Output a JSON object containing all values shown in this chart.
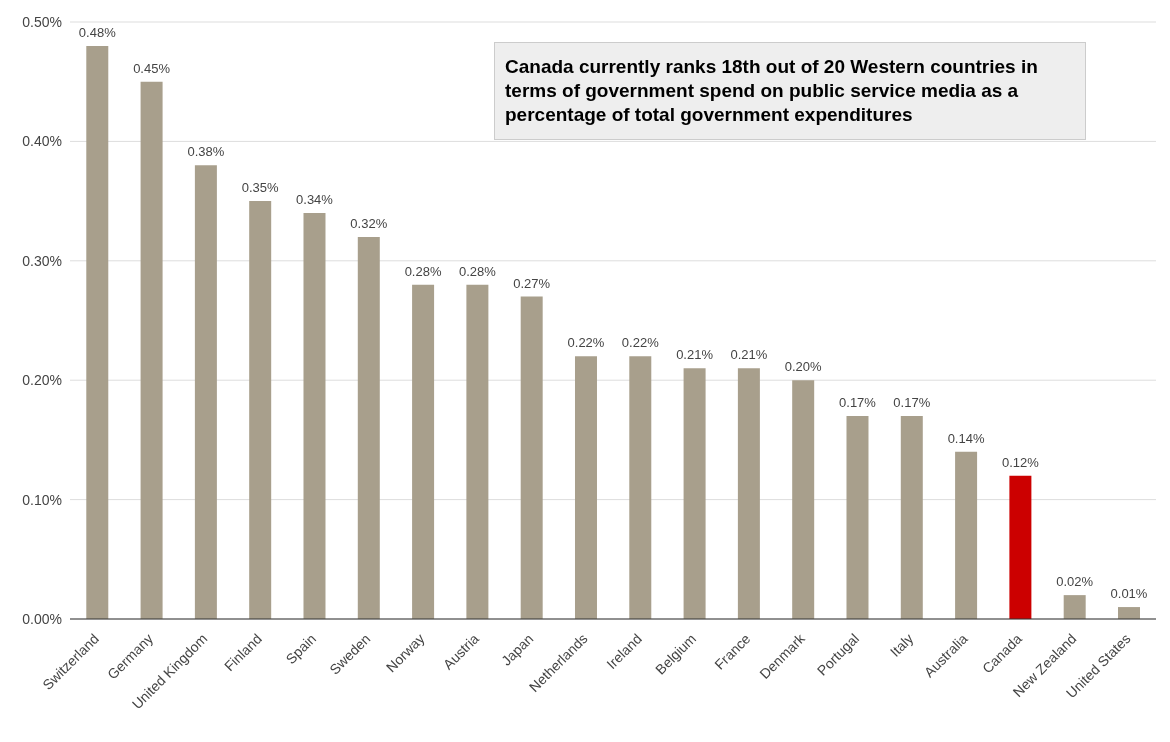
{
  "chart_data": {
    "type": "bar",
    "categories": [
      "Switzerland",
      "Germany",
      "United Kingdom",
      "Finland",
      "Spain",
      "Sweden",
      "Norway",
      "Austria",
      "Japan",
      "Netherlands",
      "Ireland",
      "Belgium",
      "France",
      "Denmark",
      "Portugal",
      "Italy",
      "Australia",
      "Canada",
      "New Zealand",
      "United States"
    ],
    "values": [
      0.48,
      0.45,
      0.38,
      0.35,
      0.34,
      0.32,
      0.28,
      0.28,
      0.27,
      0.22,
      0.22,
      0.21,
      0.21,
      0.2,
      0.17,
      0.17,
      0.14,
      0.12,
      0.02,
      0.01
    ],
    "colors": [
      "#a89f8c",
      "#a89f8c",
      "#a89f8c",
      "#a89f8c",
      "#a89f8c",
      "#a89f8c",
      "#a89f8c",
      "#a89f8c",
      "#a89f8c",
      "#a89f8c",
      "#a89f8c",
      "#a89f8c",
      "#a89f8c",
      "#a89f8c",
      "#a89f8c",
      "#a89f8c",
      "#a89f8c",
      "#cc0000",
      "#a89f8c",
      "#a89f8c"
    ],
    "value_labels": [
      "0.48%",
      "0.45%",
      "0.38%",
      "0.35%",
      "0.34%",
      "0.32%",
      "0.28%",
      "0.28%",
      "0.27%",
      "0.22%",
      "0.22%",
      "0.21%",
      "0.21%",
      "0.20%",
      "0.17%",
      "0.17%",
      "0.14%",
      "0.12%",
      "0.02%",
      "0.01%"
    ],
    "ylim": [
      0,
      0.5
    ],
    "yticks": [
      {
        "value": 0,
        "label": "0.00%"
      },
      {
        "value": 0.1,
        "label": "0.10%"
      },
      {
        "value": 0.2,
        "label": "0.20%"
      },
      {
        "value": 0.3,
        "label": "0.30%"
      },
      {
        "value": 0.4,
        "label": "0.40%"
      },
      {
        "value": 0.5,
        "label": "0.50%"
      }
    ],
    "grid": "y",
    "annotations": [
      "Canada currently ranks 18th out of 20 Western countries in terms of government spend on public service media as a percentage of total government expenditures"
    ]
  }
}
